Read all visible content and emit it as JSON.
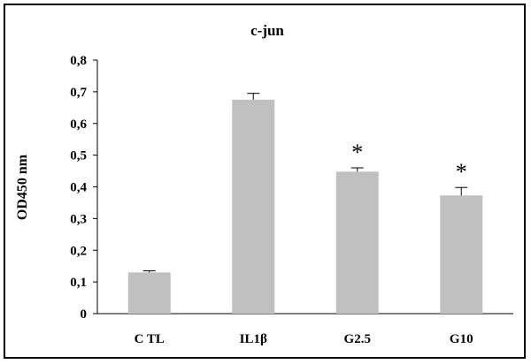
{
  "chart_data": {
    "type": "bar",
    "title": "c-jun",
    "ylabel": "OD450 nm",
    "xlabel": "",
    "categories": [
      "C TL",
      "IL1β",
      "G2.5",
      "G10"
    ],
    "values": [
      0.13,
      0.675,
      0.448,
      0.373
    ],
    "errors": [
      0.005,
      0.02,
      0.012,
      0.025
    ],
    "annotations": [
      "",
      "",
      "*",
      "*"
    ],
    "ylim": [
      0,
      0.8
    ],
    "yticks": [
      "0",
      "0,1",
      "0,2",
      "0,3",
      "0,4",
      "0,5",
      "0,6",
      "0,7",
      "0,8"
    ],
    "bar_color": "#c0c0c0",
    "grid": false,
    "legend": "none"
  }
}
